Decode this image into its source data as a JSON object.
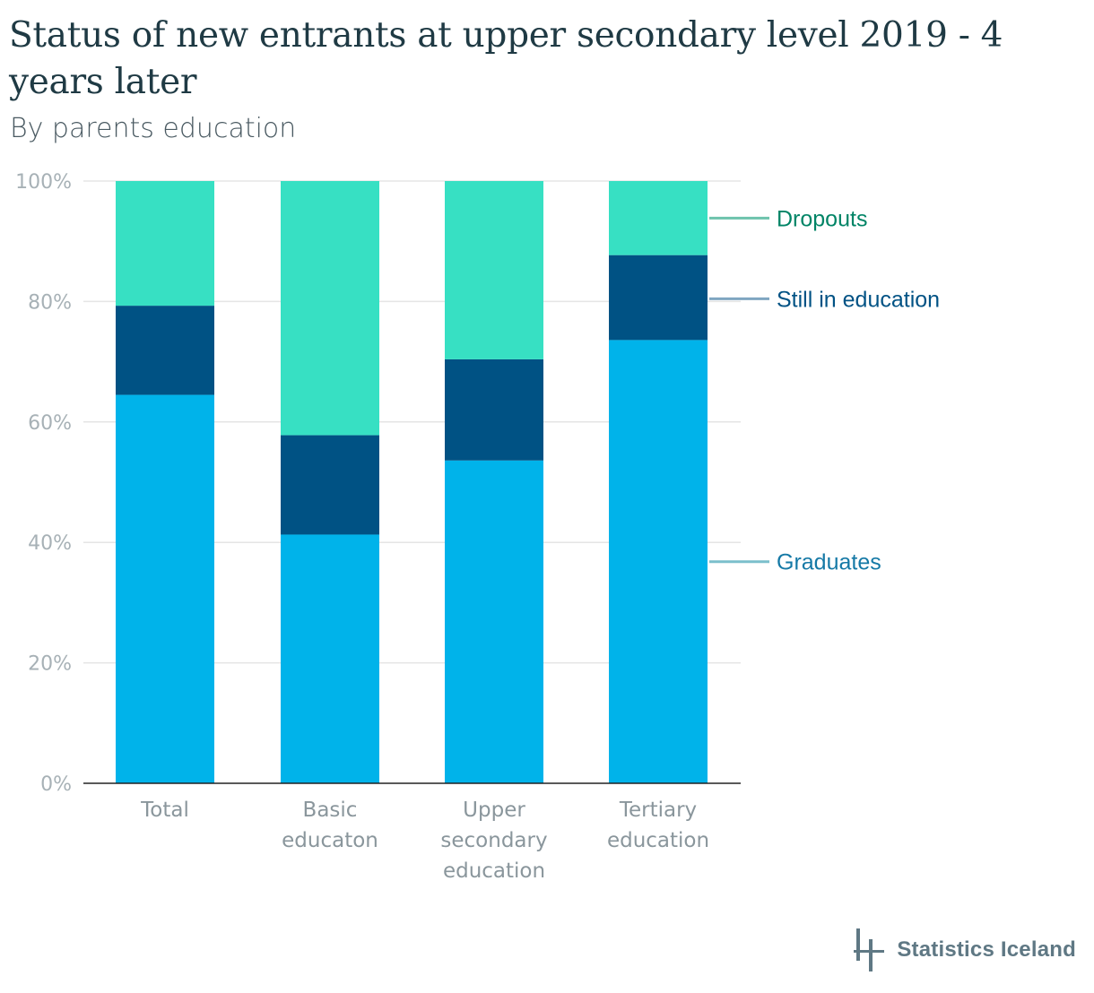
{
  "chart_data": {
    "type": "bar",
    "stacked": true,
    "title": "Status of new entrants at upper secondary level 2019 - 4 years later",
    "subtitle": "By parents education",
    "categories": [
      [
        "Total"
      ],
      [
        "Basic",
        "educaton"
      ],
      [
        "Upper",
        "secondary",
        "education"
      ],
      [
        "Tertiary",
        "education"
      ]
    ],
    "series": [
      {
        "name": "Graduates",
        "values": [
          64.5,
          41.3,
          53.6,
          73.6
        ],
        "color": "#00b3ea",
        "label_color": "#1579a6",
        "connector_color": "#7bbfcc"
      },
      {
        "name": "Still in education",
        "values": [
          14.8,
          16.5,
          16.8,
          14.1
        ],
        "color": "#005284",
        "label_color": "#005284",
        "connector_color": "#7fa6c1"
      },
      {
        "name": "Dropouts",
        "values": [
          20.7,
          42.2,
          29.6,
          12.3
        ],
        "color": "#37e0c3",
        "label_color": "#008466",
        "connector_color": "#6dc3ac"
      }
    ],
    "ylim": [
      0,
      100
    ],
    "yticks": [
      "0%",
      "20%",
      "40%",
      "60%",
      "80%",
      "100%"
    ],
    "ytick_values": [
      0,
      20,
      40,
      60,
      80,
      100
    ],
    "grid": true,
    "legend": "right, inline labels"
  },
  "branding": {
    "logo_text": "Statistics Iceland"
  },
  "colors": {
    "title": "#1f3a44",
    "gridline": "#e5e5e5",
    "axis": "#222222"
  }
}
